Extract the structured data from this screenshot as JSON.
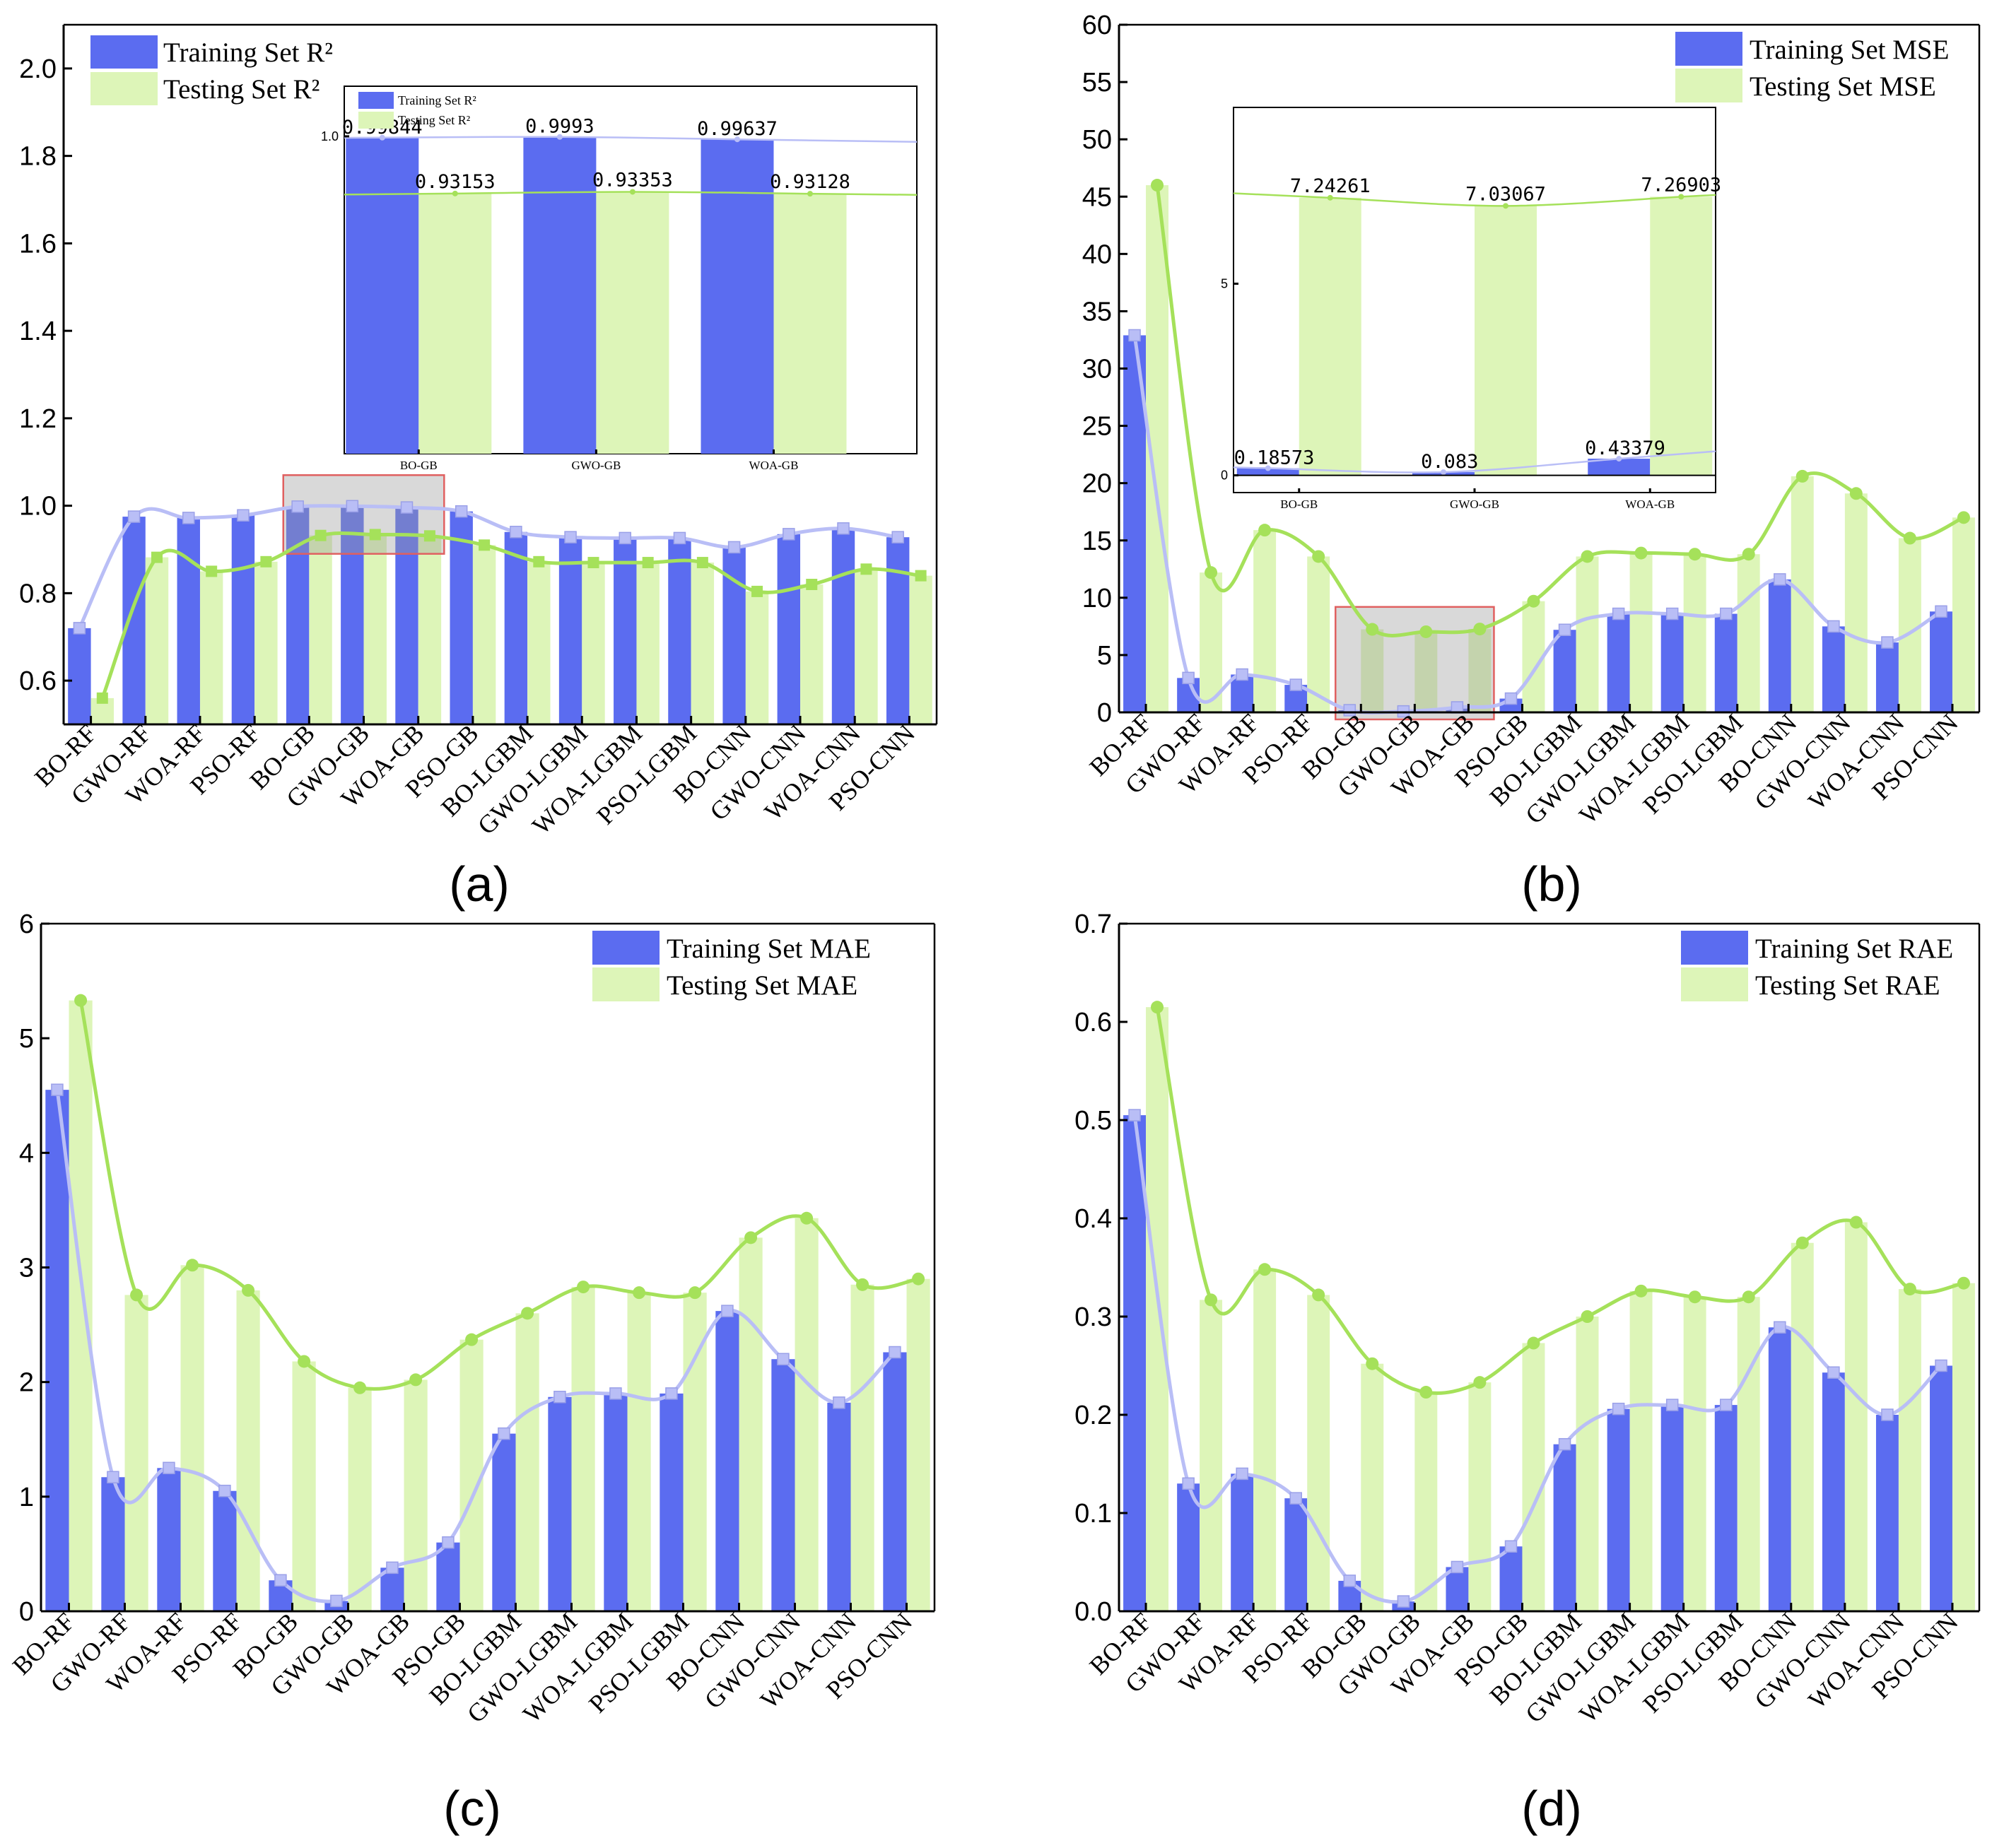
{
  "colors": {
    "train_bar": "#5B6CF0",
    "test_bar": "#DDF5B8",
    "train_line": "#B9BEF6",
    "test_line": "#A5E15A",
    "zoom_box": "#E06060"
  },
  "panels": [
    {
      "label": "(a)"
    },
    {
      "label": "(b)"
    },
    {
      "label": "(c)"
    },
    {
      "label": "(d)"
    }
  ],
  "chart_data": [
    {
      "type": "bar",
      "panel": "(a)",
      "categories": [
        "BO-RF",
        "GWO-RF",
        "WOA-RF",
        "PSO-RF",
        "BO-GB",
        "GWO-GB",
        "WOA-GB",
        "PSO-GB",
        "BO-LGBM",
        "GWO-LGBM",
        "WOA-LGBM",
        "PSO-LGBM",
        "BO-CNN",
        "GWO-CNN",
        "WOA-CNN",
        "PSO-CNN"
      ],
      "ylim": [
        0.5,
        2.1
      ],
      "yticks": [
        0.6,
        0.8,
        1.0,
        1.2,
        1.4,
        1.6,
        1.8,
        2.0
      ],
      "ytick_labels": [
        "0.6",
        "0.8",
        "1.0",
        "1.2",
        "1.4",
        "1.6",
        "1.8",
        "2.0"
      ],
      "series": [
        {
          "name": "Training Set R²",
          "values": [
            0.72,
            0.975,
            0.972,
            0.978,
            0.998,
            0.999,
            0.996,
            0.987,
            0.94,
            0.928,
            0.926,
            0.926,
            0.905,
            0.935,
            0.948,
            0.928
          ]
        },
        {
          "name": "Testing Set R²",
          "values": [
            0.56,
            0.882,
            0.85,
            0.872,
            0.932,
            0.934,
            0.931,
            0.91,
            0.872,
            0.87,
            0.87,
            0.87,
            0.804,
            0.82,
            0.855,
            0.84
          ]
        }
      ],
      "legend": "top-left",
      "zoom_range": [
        4,
        6
      ],
      "inset": {
        "categories": [
          "BO-GB",
          "GWO-GB",
          "WOA-GB"
        ],
        "legend": [
          "Training Set R²",
          "Testing Set R²"
        ],
        "ytick_labels": [
          "1.0"
        ],
        "train_values": [
          0.99844,
          0.9993,
          0.99637
        ],
        "test_values": [
          0.93153,
          0.93353,
          0.93128
        ],
        "train_labels": [
          "0.99844",
          "0.9993",
          "0.99637"
        ],
        "test_labels": [
          "0.93153",
          "0.93353",
          "0.93128"
        ]
      }
    },
    {
      "type": "bar",
      "panel": "(b)",
      "categories": [
        "BO-RF",
        "GWO-RF",
        "WOA-RF",
        "PSO-RF",
        "BO-GB",
        "GWO-GB",
        "WOA-GB",
        "PSO-GB",
        "BO-LGBM",
        "GWO-LGBM",
        "WOA-LGBM",
        "PSO-LGBM",
        "BO-CNN",
        "GWO-CNN",
        "WOA-CNN",
        "PSO-CNN"
      ],
      "ylim": [
        0,
        60
      ],
      "yticks": [
        0,
        5,
        10,
        15,
        20,
        25,
        30,
        35,
        40,
        45,
        50,
        55,
        60
      ],
      "ytick_labels": [
        "0",
        "5",
        "10",
        "15",
        "20",
        "25",
        "30",
        "35",
        "40",
        "45",
        "50",
        "55",
        "60"
      ],
      "series": [
        {
          "name": "Training Set MSE",
          "values": [
            32.9,
            3.0,
            3.3,
            2.4,
            0.18573,
            0.083,
            0.43379,
            1.2,
            7.2,
            8.6,
            8.6,
            8.6,
            11.6,
            7.5,
            6.1,
            8.8
          ]
        },
        {
          "name": "Testing Set MSE",
          "values": [
            46.0,
            12.2,
            15.9,
            13.6,
            7.24261,
            7.03067,
            7.26903,
            9.7,
            13.6,
            13.9,
            13.8,
            13.8,
            20.6,
            19.1,
            15.2,
            17.0
          ]
        }
      ],
      "legend": "top-right",
      "zoom_range": [
        4,
        6
      ],
      "inset": {
        "categories": [
          "BO-GB",
          "GWO-GB",
          "WOA-GB"
        ],
        "ytick_labels": [
          "0",
          "5"
        ],
        "train_values": [
          0.18573,
          0.083,
          0.43379
        ],
        "test_values": [
          7.24261,
          7.03067,
          7.26903
        ],
        "train_labels": [
          "0.18573",
          "0.083",
          "0.43379"
        ],
        "test_labels": [
          "7.24261",
          "7.03067",
          "7.26903"
        ]
      }
    },
    {
      "type": "bar",
      "panel": "(c)",
      "categories": [
        "BO-RF",
        "GWO-RF",
        "WOA-RF",
        "PSO-RF",
        "BO-GB",
        "GWO-GB",
        "WOA-GB",
        "PSO-GB",
        "BO-LGBM",
        "GWO-LGBM",
        "WOA-LGBM",
        "PSO-LGBM",
        "BO-CNN",
        "GWO-CNN",
        "WOA-CNN",
        "PSO-CNN"
      ],
      "ylim": [
        0,
        6
      ],
      "yticks": [
        0,
        1,
        2,
        3,
        4,
        5,
        6
      ],
      "ytick_labels": [
        "0",
        "1",
        "2",
        "3",
        "4",
        "5",
        "6"
      ],
      "series": [
        {
          "name": "Training Set MAE",
          "values": [
            4.55,
            1.17,
            1.25,
            1.05,
            0.27,
            0.09,
            0.38,
            0.6,
            1.55,
            1.87,
            1.9,
            1.9,
            2.62,
            2.2,
            1.82,
            2.26
          ]
        },
        {
          "name": "Testing Set MAE",
          "values": [
            5.33,
            2.76,
            3.02,
            2.8,
            2.18,
            1.95,
            2.02,
            2.37,
            2.6,
            2.83,
            2.78,
            2.78,
            3.26,
            3.43,
            2.85,
            2.9
          ]
        }
      ],
      "legend": "top-right"
    },
    {
      "type": "bar",
      "panel": "(d)",
      "categories": [
        "BO-RF",
        "GWO-RF",
        "WOA-RF",
        "PSO-RF",
        "BO-GB",
        "GWO-GB",
        "WOA-GB",
        "PSO-GB",
        "BO-LGBM",
        "GWO-LGBM",
        "WOA-LGBM",
        "PSO-LGBM",
        "BO-CNN",
        "GWO-CNN",
        "WOA-CNN",
        "PSO-CNN"
      ],
      "ylim": [
        0,
        0.7
      ],
      "yticks": [
        0,
        0.1,
        0.2,
        0.3,
        0.4,
        0.5,
        0.6,
        0.7
      ],
      "ytick_labels": [
        "0.0",
        "0.1",
        "0.2",
        "0.3",
        "0.4",
        "0.5",
        "0.6",
        "0.7"
      ],
      "series": [
        {
          "name": "Training Set RAE",
          "values": [
            0.505,
            0.13,
            0.14,
            0.115,
            0.031,
            0.01,
            0.045,
            0.066,
            0.17,
            0.206,
            0.21,
            0.21,
            0.289,
            0.243,
            0.2,
            0.25
          ]
        },
        {
          "name": "Testing Set RAE",
          "values": [
            0.615,
            0.317,
            0.348,
            0.322,
            0.252,
            0.223,
            0.233,
            0.273,
            0.3,
            0.326,
            0.32,
            0.32,
            0.375,
            0.396,
            0.328,
            0.334
          ]
        }
      ],
      "legend": "top-right"
    }
  ]
}
